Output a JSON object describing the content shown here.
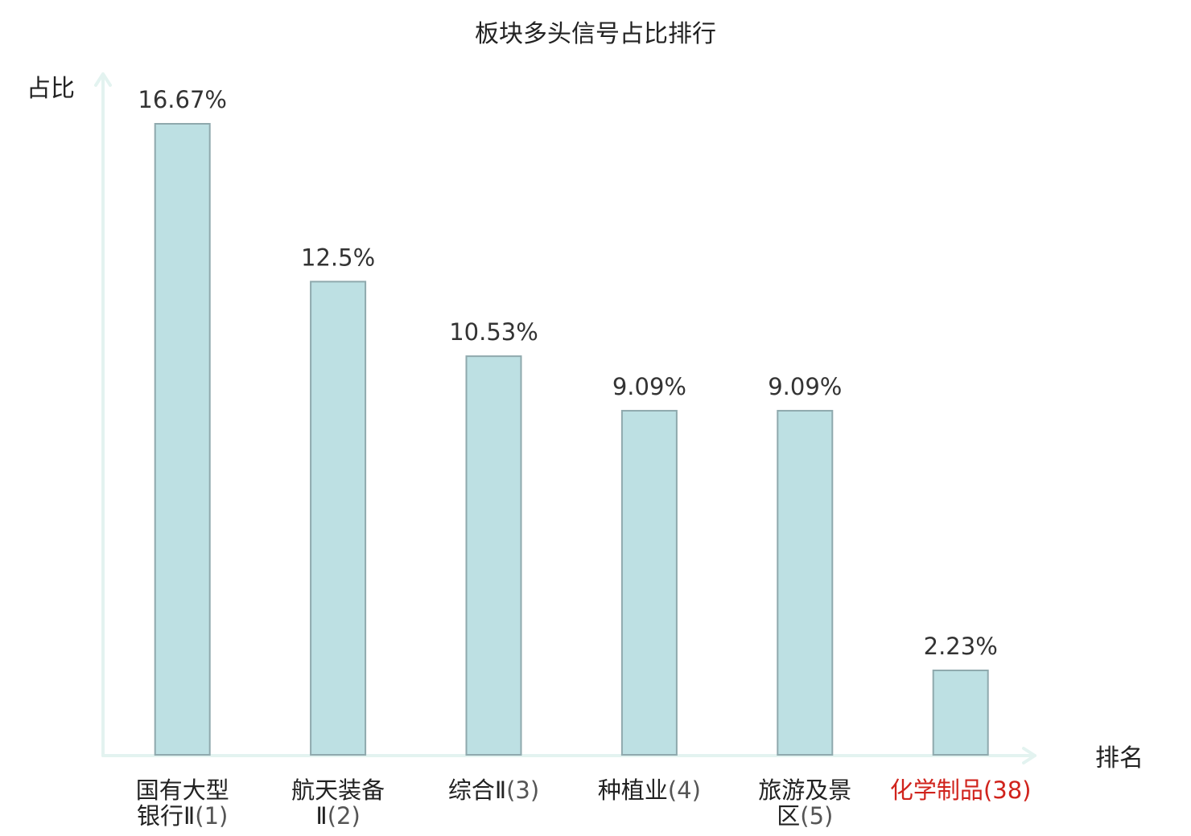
{
  "chart_data": {
    "type": "bar",
    "title": "板块多头信号占比排行",
    "ylabel": "占比",
    "xlabel": "排名",
    "ylim": [
      0,
      18
    ],
    "grid": false,
    "categories": [
      {
        "name_lines": [
          "国有大型",
          "银行Ⅱ"
        ],
        "rank": "(1)",
        "highlight": false
      },
      {
        "name_lines": [
          "航天装备",
          "Ⅱ"
        ],
        "rank": "(2)",
        "highlight": false
      },
      {
        "name_lines": [
          "综合Ⅱ"
        ],
        "rank": "(3)",
        "highlight": false
      },
      {
        "name_lines": [
          "种植业"
        ],
        "rank": "(4)",
        "highlight": false
      },
      {
        "name_lines": [
          "旅游及景",
          "区"
        ],
        "rank": "(5)",
        "highlight": false
      },
      {
        "name_lines": [
          "化学制品"
        ],
        "rank": "(38)",
        "highlight": true
      }
    ],
    "values": [
      16.67,
      12.5,
      10.53,
      9.09,
      9.09,
      2.23
    ],
    "value_labels": [
      "16.67%",
      "12.5%",
      "10.53%",
      "9.09%",
      "9.09%",
      "2.23%"
    ],
    "colors": {
      "bar_fill": "#bde0e3",
      "bar_stroke": "#8fa9ad",
      "axis": "#e3f3f0",
      "highlight_text": "#d0231c"
    }
  }
}
